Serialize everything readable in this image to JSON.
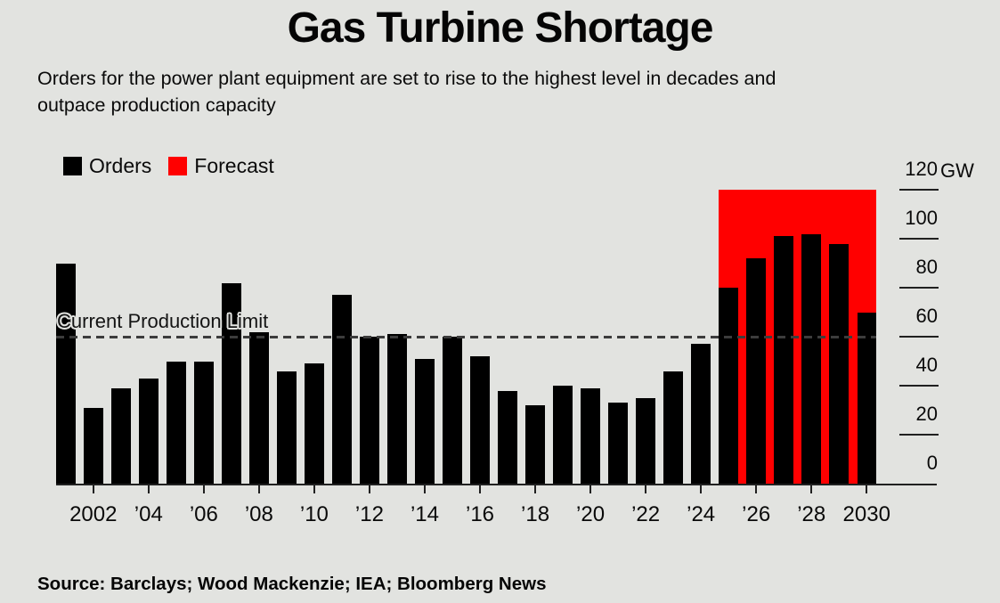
{
  "header": {
    "title": "Gas Turbine Shortage",
    "subtitle_lines": [
      "Orders for the power plant equipment are set to rise to the highest level in decades and",
      "outpace production capacity"
    ]
  },
  "legend": {
    "items": [
      {
        "label": "Orders",
        "color": "#000000"
      },
      {
        "label": "Forecast",
        "color": "#ff0000"
      }
    ]
  },
  "chart_data": {
    "type": "bar",
    "title": "Gas Turbine Shortage",
    "unit": "GW",
    "ylabel": "",
    "xlabel": "",
    "ylim": [
      0,
      120
    ],
    "y_ticks": [
      0,
      20,
      40,
      60,
      80,
      100,
      120
    ],
    "x_tick_labels": [
      "2002",
      "’04",
      "’06",
      "’08",
      "’10",
      "’12",
      "’14",
      "’16",
      "’18",
      "’20",
      "’22",
      "’24",
      "’26",
      "’28",
      "2030"
    ],
    "years": [
      2001,
      2002,
      2003,
      2004,
      2005,
      2006,
      2007,
      2008,
      2009,
      2010,
      2011,
      2012,
      2013,
      2014,
      2015,
      2016,
      2017,
      2018,
      2019,
      2020,
      2021,
      2022,
      2023,
      2024,
      2025,
      2026,
      2027,
      2028,
      2029,
      2030
    ],
    "values": [
      90,
      31,
      39,
      43,
      50,
      50,
      82,
      62,
      46,
      49,
      77,
      60,
      61,
      51,
      60,
      52,
      38,
      32,
      40,
      39,
      33,
      35,
      46,
      57,
      80,
      92,
      101,
      102,
      98,
      70
    ],
    "series_name": "Orders",
    "annotation": {
      "label": "Current Production Limit",
      "value": 60,
      "style": "dashed"
    },
    "forecast_region": {
      "from_year": 2025,
      "to_year": 2030,
      "top_value": 120
    },
    "legend_position": "top-left",
    "grid": false
  },
  "colors": {
    "background": "#e2e3e0",
    "bar": "#000000",
    "forecast": "#ff0000",
    "axis": "#202020",
    "dashed_line": "#3c3c3c"
  },
  "source": {
    "text": "Source: Barclays; Wood Mackenzie; IEA; Bloomberg News"
  }
}
